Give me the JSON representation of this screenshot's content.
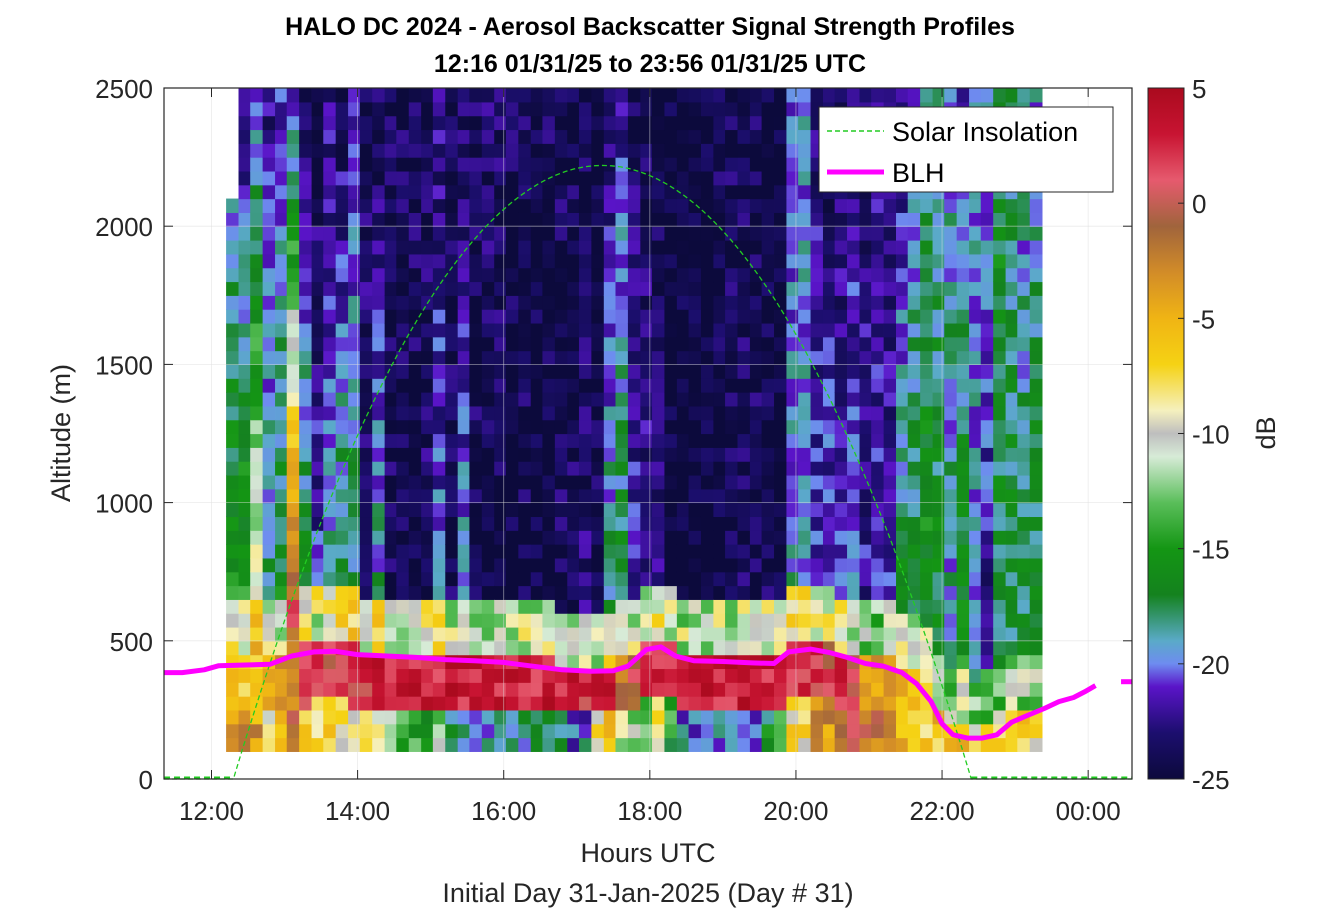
{
  "chart_data": {
    "type": "heatmap",
    "title": "HALO DC 2024 - Aerosol Backscatter Signal Strength Profiles",
    "subtitle": "12:16 01/31/25 to 23:56 01/31/25  UTC",
    "xlabel": "Hours UTC",
    "xlabel2": "Initial Day 31-Jan-2025 (Day # 31)",
    "ylabel": "Altitude (m)",
    "colorbar_label": "dB",
    "xlim": [
      11.35,
      24.6
    ],
    "ylim": [
      0,
      2500
    ],
    "clim": [
      -25,
      5
    ],
    "x_ticks": [
      12,
      14,
      16,
      18,
      20,
      22,
      24
    ],
    "x_tick_labels": [
      "12:00",
      "14:00",
      "16:00",
      "18:00",
      "20:00",
      "22:00",
      "00:00"
    ],
    "y_ticks": [
      0,
      500,
      1000,
      1500,
      2000,
      2500
    ],
    "y_tick_labels": [
      "0",
      "500",
      "1000",
      "1500",
      "2000",
      "2500"
    ],
    "colorbar_ticks": [
      -25,
      -20,
      -15,
      -10,
      -5,
      0,
      5
    ],
    "colorbar_tick_labels": [
      "-25",
      "-20",
      "-15",
      "-10",
      "-5",
      "0",
      "5"
    ],
    "grid": true,
    "legend_position": "top-right",
    "legend": [
      "Solar Insolation",
      "BLH"
    ],
    "colors": {
      "solar": "#22cc22",
      "blh": "#ff00ff"
    },
    "heatmap": {
      "x_start": 12.2,
      "x_step": 0.1667,
      "y_start": 100,
      "y_step": 50,
      "note_rows": "rows ordered bottom (100 m) to top (2500 m); values in dB",
      "profiles": [
        {
          "x": 12.2,
          "top": 2100,
          "base": -5,
          "sfc": -7,
          "mid": -14,
          "top_val": -21
        },
        {
          "x": 12.37,
          "top": 2500,
          "base": -7,
          "sfc": -5,
          "mid": -13,
          "top_val": -23
        },
        {
          "x": 12.53,
          "top": 2500,
          "base": -6,
          "sfc": -8,
          "mid": -8,
          "top_val": -20
        },
        {
          "x": 12.7,
          "top": 2500,
          "base": -5,
          "sfc": -12,
          "mid": -17,
          "top_val": -23
        },
        {
          "x": 12.87,
          "top": 2500,
          "base": -4,
          "sfc": -10,
          "mid": -16,
          "top_val": -21
        },
        {
          "x": 13.03,
          "top": 2500,
          "base": -2,
          "sfc": -6,
          "mid": 2,
          "top_val": -22
        },
        {
          "x": 13.2,
          "top": 2500,
          "base": 1,
          "sfc": -10,
          "mid": -16,
          "top_val": -23
        },
        {
          "x": 13.37,
          "top": 2500,
          "base": 1,
          "sfc": -11,
          "mid": -21,
          "top_val": -24
        },
        {
          "x": 13.53,
          "top": 2500,
          "base": 0,
          "sfc": -11,
          "mid": -18,
          "top_val": -23
        },
        {
          "x": 13.7,
          "top": 2500,
          "base": 1,
          "sfc": -13,
          "mid": -16,
          "top_val": -24
        },
        {
          "x": 13.87,
          "top": 2500,
          "base": 2,
          "sfc": -12,
          "mid": -17,
          "top_val": -22
        },
        {
          "x": 14.03,
          "top": 2500,
          "base": 2,
          "sfc": -13,
          "mid": -22,
          "top_val": -24
        },
        {
          "x": 14.2,
          "top": 2500,
          "base": 3,
          "sfc": -14,
          "mid": -18,
          "top_val": -24
        },
        {
          "x": 14.37,
          "top": 2500,
          "base": 3,
          "sfc": -16,
          "mid": -24,
          "top_val": -24
        },
        {
          "x": 14.53,
          "top": 2500,
          "base": 3,
          "sfc": -17,
          "mid": -24,
          "top_val": -24
        },
        {
          "x": 14.7,
          "top": 2500,
          "base": 3,
          "sfc": -18,
          "mid": -24,
          "top_val": -24
        },
        {
          "x": 14.87,
          "top": 2500,
          "base": 3,
          "sfc": -19,
          "mid": -23,
          "top_val": -24
        },
        {
          "x": 15.03,
          "top": 2500,
          "base": 3,
          "sfc": -16,
          "mid": -20,
          "top_val": -23
        },
        {
          "x": 15.2,
          "top": 2500,
          "base": 3,
          "sfc": -22,
          "mid": -24,
          "top_val": -24
        },
        {
          "x": 15.37,
          "top": 2500,
          "base": 3,
          "sfc": -22,
          "mid": -19,
          "top_val": -24
        },
        {
          "x": 15.53,
          "top": 2500,
          "base": 3,
          "sfc": -24,
          "mid": -24,
          "top_val": -24
        },
        {
          "x": 15.7,
          "top": 2500,
          "base": 3,
          "sfc": -24,
          "mid": -25,
          "top_val": -23
        },
        {
          "x": 15.87,
          "top": 2500,
          "base": 3,
          "sfc": -23,
          "mid": -25,
          "top_val": -23
        },
        {
          "x": 16.03,
          "top": 2500,
          "base": 3,
          "sfc": -22,
          "mid": -25,
          "top_val": -24
        },
        {
          "x": 16.2,
          "top": 2500,
          "base": 3,
          "sfc": -22,
          "mid": -24,
          "top_val": -24
        },
        {
          "x": 16.37,
          "top": 2500,
          "base": 3,
          "sfc": -20,
          "mid": -25,
          "top_val": -24
        },
        {
          "x": 16.53,
          "top": 2500,
          "base": 3,
          "sfc": -22,
          "mid": -25,
          "top_val": -24
        },
        {
          "x": 16.7,
          "top": 2500,
          "base": 3,
          "sfc": -22,
          "mid": -24,
          "top_val": -24
        },
        {
          "x": 16.87,
          "top": 2500,
          "base": 3,
          "sfc": -24,
          "mid": -24,
          "top_val": -24
        },
        {
          "x": 17.03,
          "top": 2500,
          "base": 2,
          "sfc": -24,
          "mid": -23,
          "top_val": -24
        },
        {
          "x": 17.2,
          "top": 2500,
          "base": 3,
          "sfc": -12,
          "mid": -24,
          "top_val": -25
        },
        {
          "x": 17.37,
          "top": 2500,
          "base": 3,
          "sfc": -10,
          "mid": -17,
          "top_val": -24
        },
        {
          "x": 17.53,
          "top": 2500,
          "base": -2,
          "sfc": -15,
          "mid": -16,
          "top_val": -22
        },
        {
          "x": 17.7,
          "top": 2500,
          "base": 0,
          "sfc": -16,
          "mid": -21,
          "top_val": -24
        },
        {
          "x": 17.87,
          "top": 2500,
          "base": 2,
          "sfc": -16,
          "mid": -22,
          "top_val": -24
        },
        {
          "x": 18.03,
          "top": 2500,
          "base": 3,
          "sfc": -11,
          "mid": -22,
          "top_val": -25
        },
        {
          "x": 18.2,
          "top": 2500,
          "base": 3,
          "sfc": -19,
          "mid": -25,
          "top_val": -25
        },
        {
          "x": 18.37,
          "top": 2500,
          "base": 3,
          "sfc": -24,
          "mid": -25,
          "top_val": -25
        },
        {
          "x": 18.53,
          "top": 2500,
          "base": 3,
          "sfc": -24,
          "mid": -25,
          "top_val": -25
        },
        {
          "x": 18.7,
          "top": 2500,
          "base": 3,
          "sfc": -23,
          "mid": -25,
          "top_val": -25
        },
        {
          "x": 18.87,
          "top": 2500,
          "base": 3,
          "sfc": -24,
          "mid": -25,
          "top_val": -24
        },
        {
          "x": 19.03,
          "top": 2500,
          "base": 3,
          "sfc": -24,
          "mid": -24,
          "top_val": -24
        },
        {
          "x": 19.2,
          "top": 2500,
          "base": 3,
          "sfc": -24,
          "mid": -24,
          "top_val": -24
        },
        {
          "x": 19.37,
          "top": 2500,
          "base": 3,
          "sfc": -24,
          "mid": -24,
          "top_val": -24
        },
        {
          "x": 19.53,
          "top": 2500,
          "base": 3,
          "sfc": -21,
          "mid": -24,
          "top_val": -25
        },
        {
          "x": 19.7,
          "top": 2500,
          "base": 3,
          "sfc": -16,
          "mid": -25,
          "top_val": -25
        },
        {
          "x": 19.87,
          "top": 2500,
          "base": 2,
          "sfc": -12,
          "mid": -19,
          "top_val": -21
        },
        {
          "x": 20.03,
          "top": 2500,
          "base": 2,
          "sfc": -12,
          "mid": -19,
          "top_val": -20
        },
        {
          "x": 20.2,
          "top": 2500,
          "base": 2,
          "sfc": -7,
          "mid": -21,
          "top_val": -23
        },
        {
          "x": 20.37,
          "top": 2500,
          "base": 1,
          "sfc": -7,
          "mid": -20,
          "top_val": -24
        },
        {
          "x": 20.53,
          "top": 2500,
          "base": 2,
          "sfc": -5,
          "mid": -20,
          "top_val": -24
        },
        {
          "x": 20.7,
          "top": 2500,
          "base": 0,
          "sfc": -5,
          "mid": -20,
          "top_val": -23
        },
        {
          "x": 20.87,
          "top": 2500,
          "base": -3,
          "sfc": -5,
          "mid": -22,
          "top_val": -23
        },
        {
          "x": 21.03,
          "top": 2500,
          "base": -4,
          "sfc": -6,
          "mid": -21,
          "top_val": -23
        },
        {
          "x": 21.2,
          "top": 2500,
          "base": -3,
          "sfc": -7,
          "mid": -21,
          "top_val": -24
        },
        {
          "x": 21.37,
          "top": 2500,
          "base": -6,
          "sfc": -9,
          "mid": -16,
          "top_val": -23
        },
        {
          "x": 21.53,
          "top": 2500,
          "base": -6,
          "sfc": -12,
          "mid": -17,
          "top_val": -20
        },
        {
          "x": 21.7,
          "top": 2500,
          "base": -6,
          "sfc": -11,
          "mid": -15,
          "top_val": -19
        },
        {
          "x": 21.87,
          "top": 2500,
          "base": -5,
          "sfc": -10,
          "mid": -16,
          "top_val": -19
        },
        {
          "x": 22.03,
          "top": 2500,
          "base": -6,
          "sfc": -11,
          "mid": -19,
          "top_val": -19
        },
        {
          "x": 22.2,
          "top": 2500,
          "base": -6,
          "sfc": -12,
          "mid": -15,
          "top_val": -21
        },
        {
          "x": 22.37,
          "top": 2500,
          "base": -6,
          "sfc": -14,
          "mid": -19,
          "top_val": -20
        },
        {
          "x": 22.53,
          "top": 2500,
          "base": -7,
          "sfc": -16,
          "mid": -23,
          "top_val": -19
        },
        {
          "x": 22.7,
          "top": 2500,
          "base": -7,
          "sfc": -15,
          "mid": -18,
          "top_val": -16
        },
        {
          "x": 22.87,
          "top": 2500,
          "base": -6,
          "sfc": -12,
          "mid": -17,
          "top_val": -18
        },
        {
          "x": 23.03,
          "top": 2500,
          "base": -6,
          "sfc": -11,
          "mid": -17,
          "top_val": -20
        },
        {
          "x": 23.2,
          "top": 2500,
          "base": -7,
          "sfc": -12,
          "mid": -16,
          "top_val": -20
        }
      ]
    },
    "blh": {
      "x": [
        11.35,
        11.6,
        11.9,
        12.1,
        12.4,
        12.8,
        13.1,
        13.4,
        13.7,
        14.0,
        14.4,
        14.8,
        15.2,
        15.6,
        16.0,
        16.4,
        16.8,
        17.2,
        17.5,
        17.7,
        17.95,
        18.15,
        18.35,
        18.6,
        19.0,
        19.4,
        19.7,
        19.9,
        20.2,
        20.45,
        20.7,
        20.95,
        21.2,
        21.45,
        21.65,
        21.85,
        22.0,
        22.15,
        22.35,
        22.55,
        22.75,
        22.95,
        23.15,
        23.4,
        23.6,
        23.8,
        23.95,
        24.1
      ],
      "y": [
        385,
        385,
        395,
        410,
        412,
        415,
        445,
        460,
        462,
        450,
        445,
        440,
        432,
        428,
        422,
        408,
        395,
        390,
        392,
        408,
        468,
        478,
        445,
        428,
        425,
        420,
        418,
        460,
        470,
        458,
        440,
        418,
        408,
        385,
        345,
        280,
        200,
        160,
        148,
        148,
        160,
        205,
        228,
        255,
        280,
        295,
        315,
        338
      ],
      "x_right": 24.45,
      "y_right": 352
    },
    "solar": {
      "x_rise": 12.3,
      "x_set": 22.4,
      "peak_alt": 2220,
      "peak_x": 17.35
    }
  }
}
